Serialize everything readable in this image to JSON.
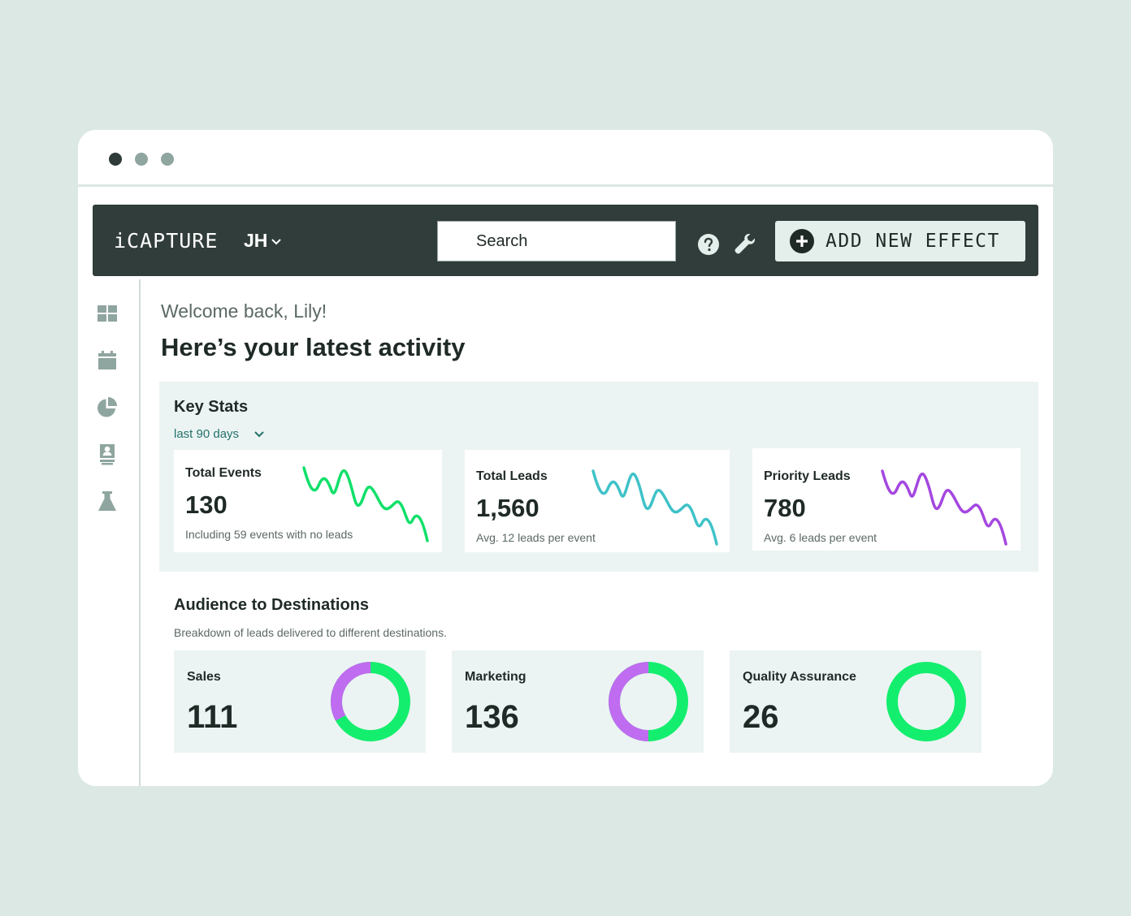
{
  "window": {
    "dots": [
      "close",
      "minimize",
      "maximize"
    ]
  },
  "topbar": {
    "brand": "iCAPTURE",
    "account": "JH",
    "search_placeholder": "Search",
    "add_button": "ADD NEW EFFECT"
  },
  "sidebar": {
    "items": [
      {
        "icon": "dashboard-icon"
      },
      {
        "icon": "calendar-icon"
      },
      {
        "icon": "pie-chart-icon"
      },
      {
        "icon": "contact-badge-icon"
      },
      {
        "icon": "flask-icon"
      }
    ]
  },
  "main": {
    "welcome": "Welcome back, Lily!",
    "heading": "Here’s your latest activity"
  },
  "key_stats": {
    "title": "Key Stats",
    "range": "last 90 days",
    "cards": [
      {
        "label": "Total Events",
        "value": "130",
        "sub": "Including 59 events with no leads",
        "color": "#10e06a"
      },
      {
        "label": "Total Leads",
        "value": "1,560",
        "sub": "Avg. 12 leads per event",
        "color": "#3fc2c8"
      },
      {
        "label": "Priority Leads",
        "value": "780",
        "sub": "Avg. 6 leads per event",
        "color": "#a447e0"
      }
    ]
  },
  "audience": {
    "title": "Audience to Destinations",
    "subtitle": "Breakdown of leads delivered to different destinations.",
    "colors": {
      "primary": "#14ee6e",
      "secondary": "#c06cf0"
    },
    "cards": [
      {
        "label": "Sales",
        "value": "111",
        "secondary_fraction": 0.33
      },
      {
        "label": "Marketing",
        "value": "136",
        "secondary_fraction": 0.5
      },
      {
        "label": "Quality Assurance",
        "value": "26",
        "secondary_fraction": 0
      }
    ]
  }
}
